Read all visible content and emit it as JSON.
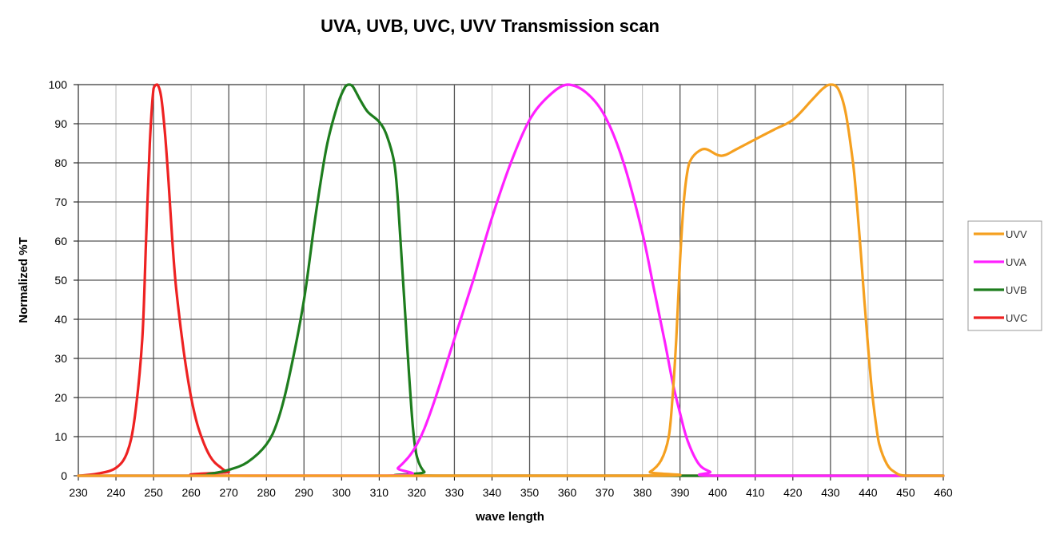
{
  "chart_data": {
    "type": "line",
    "title": "UVA, UVB, UVC, UVV Transmission scan",
    "xlabel": "wave length",
    "ylabel": "Normalized %T",
    "xlim": [
      230,
      460
    ],
    "ylim": [
      0,
      100
    ],
    "x_ticks": [
      230,
      240,
      250,
      260,
      270,
      280,
      290,
      300,
      310,
      320,
      330,
      340,
      350,
      360,
      370,
      380,
      390,
      400,
      410,
      420,
      430,
      440,
      450,
      460
    ],
    "y_ticks": [
      0,
      10,
      20,
      30,
      40,
      50,
      60,
      70,
      80,
      90,
      100
    ],
    "grid": true,
    "legend_position": "right",
    "series": [
      {
        "name": "UVV",
        "color": "#f5a020",
        "x": [
          230,
          378,
          382,
          385,
          387,
          388,
          389,
          390,
          391,
          392,
          393,
          395,
          397,
          400,
          402,
          405,
          410,
          415,
          420,
          425,
          428,
          430,
          432,
          434,
          436,
          437,
          438,
          439,
          440,
          441,
          442,
          443,
          445,
          447,
          450,
          460
        ],
        "y": [
          0,
          0,
          1,
          4,
          10,
          20,
          35,
          55,
          70,
          78,
          81,
          83,
          83.5,
          82,
          82,
          83.5,
          86,
          88.5,
          91,
          96,
          99,
          100,
          99,
          93,
          80,
          70,
          58,
          45,
          33,
          22,
          14,
          8,
          3,
          1,
          0,
          0
        ]
      },
      {
        "name": "UVA",
        "color": "#ff20ff",
        "x": [
          230,
          312,
          315,
          318,
          320,
          322,
          325,
          330,
          335,
          340,
          345,
          350,
          355,
          360,
          365,
          370,
          375,
          380,
          383,
          386,
          388,
          390,
          392,
          395,
          398,
          400,
          460
        ],
        "y": [
          0,
          0,
          2,
          5,
          8,
          12,
          20,
          35,
          50,
          66,
          80,
          91,
          97,
          100,
          98,
          92,
          80,
          62,
          48,
          34,
          24,
          16,
          9,
          3,
          1,
          0,
          0
        ]
      },
      {
        "name": "UVB",
        "color": "#1e7d1e",
        "x": [
          230,
          260,
          265,
          270,
          275,
          280,
          283,
          286,
          290,
          293,
          296,
          299,
          301,
          302,
          303,
          305,
          307,
          310,
          312,
          314,
          315,
          316,
          317,
          318,
          319,
          320,
          322,
          325,
          460
        ],
        "y": [
          0,
          0,
          0.5,
          1.5,
          3.5,
          8,
          14,
          25,
          45,
          66,
          84,
          95,
          99.5,
          100,
          99.5,
          96,
          93,
          90.5,
          87,
          80,
          70,
          55,
          40,
          25,
          12,
          5,
          1,
          0,
          0
        ]
      },
      {
        "name": "UVC",
        "color": "#ee2222",
        "x": [
          230,
          235,
          240,
          243,
          245,
          247,
          248,
          249,
          250,
          251,
          252,
          253,
          254,
          255,
          256,
          258,
          260,
          262,
          265,
          268,
          270,
          275,
          460
        ],
        "y": [
          0,
          0.5,
          2,
          6,
          15,
          35,
          60,
          85,
          99,
          100,
          97,
          88,
          75,
          60,
          48,
          32,
          20,
          12,
          5,
          2,
          1,
          0,
          0
        ]
      }
    ]
  }
}
